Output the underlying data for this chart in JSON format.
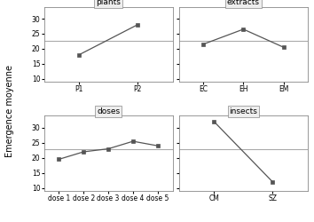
{
  "plants": {
    "title": "plants",
    "x_labels": [
      "P1",
      "P2"
    ],
    "y_values": [
      18.0,
      28.0
    ],
    "ref_line": 22.5
  },
  "extracts": {
    "title": "extracts",
    "x_labels": [
      "EC",
      "EH",
      "EM"
    ],
    "y_values": [
      21.5,
      26.5,
      20.5
    ],
    "ref_line": 22.5
  },
  "doses": {
    "title": "doses",
    "x_labels": [
      "dose 1",
      "dose 2",
      "dose 3",
      "dose 4",
      "dose 5"
    ],
    "y_values": [
      19.5,
      22.0,
      23.0,
      25.5,
      24.0
    ],
    "ref_line": 23.0
  },
  "insects": {
    "title": "insects",
    "x_labels": [
      "CM",
      "SZ"
    ],
    "y_values": [
      32.0,
      12.0
    ],
    "ref_line": 23.0
  },
  "panel_order": [
    "plants",
    "extracts",
    "doses",
    "insects"
  ],
  "ylim": [
    9,
    34
  ],
  "yticks": [
    10,
    15,
    20,
    25,
    30
  ],
  "ylabel": "Emergence moyenne",
  "line_color": "#555555",
  "marker": "s",
  "markersize": 3,
  "ref_color": "#aaaaaa",
  "title_fontsize": 6.5,
  "tick_fontsize": 5.5,
  "ylabel_fontsize": 7,
  "spine_color": "#888888",
  "title_bg": "#f0f0f0"
}
